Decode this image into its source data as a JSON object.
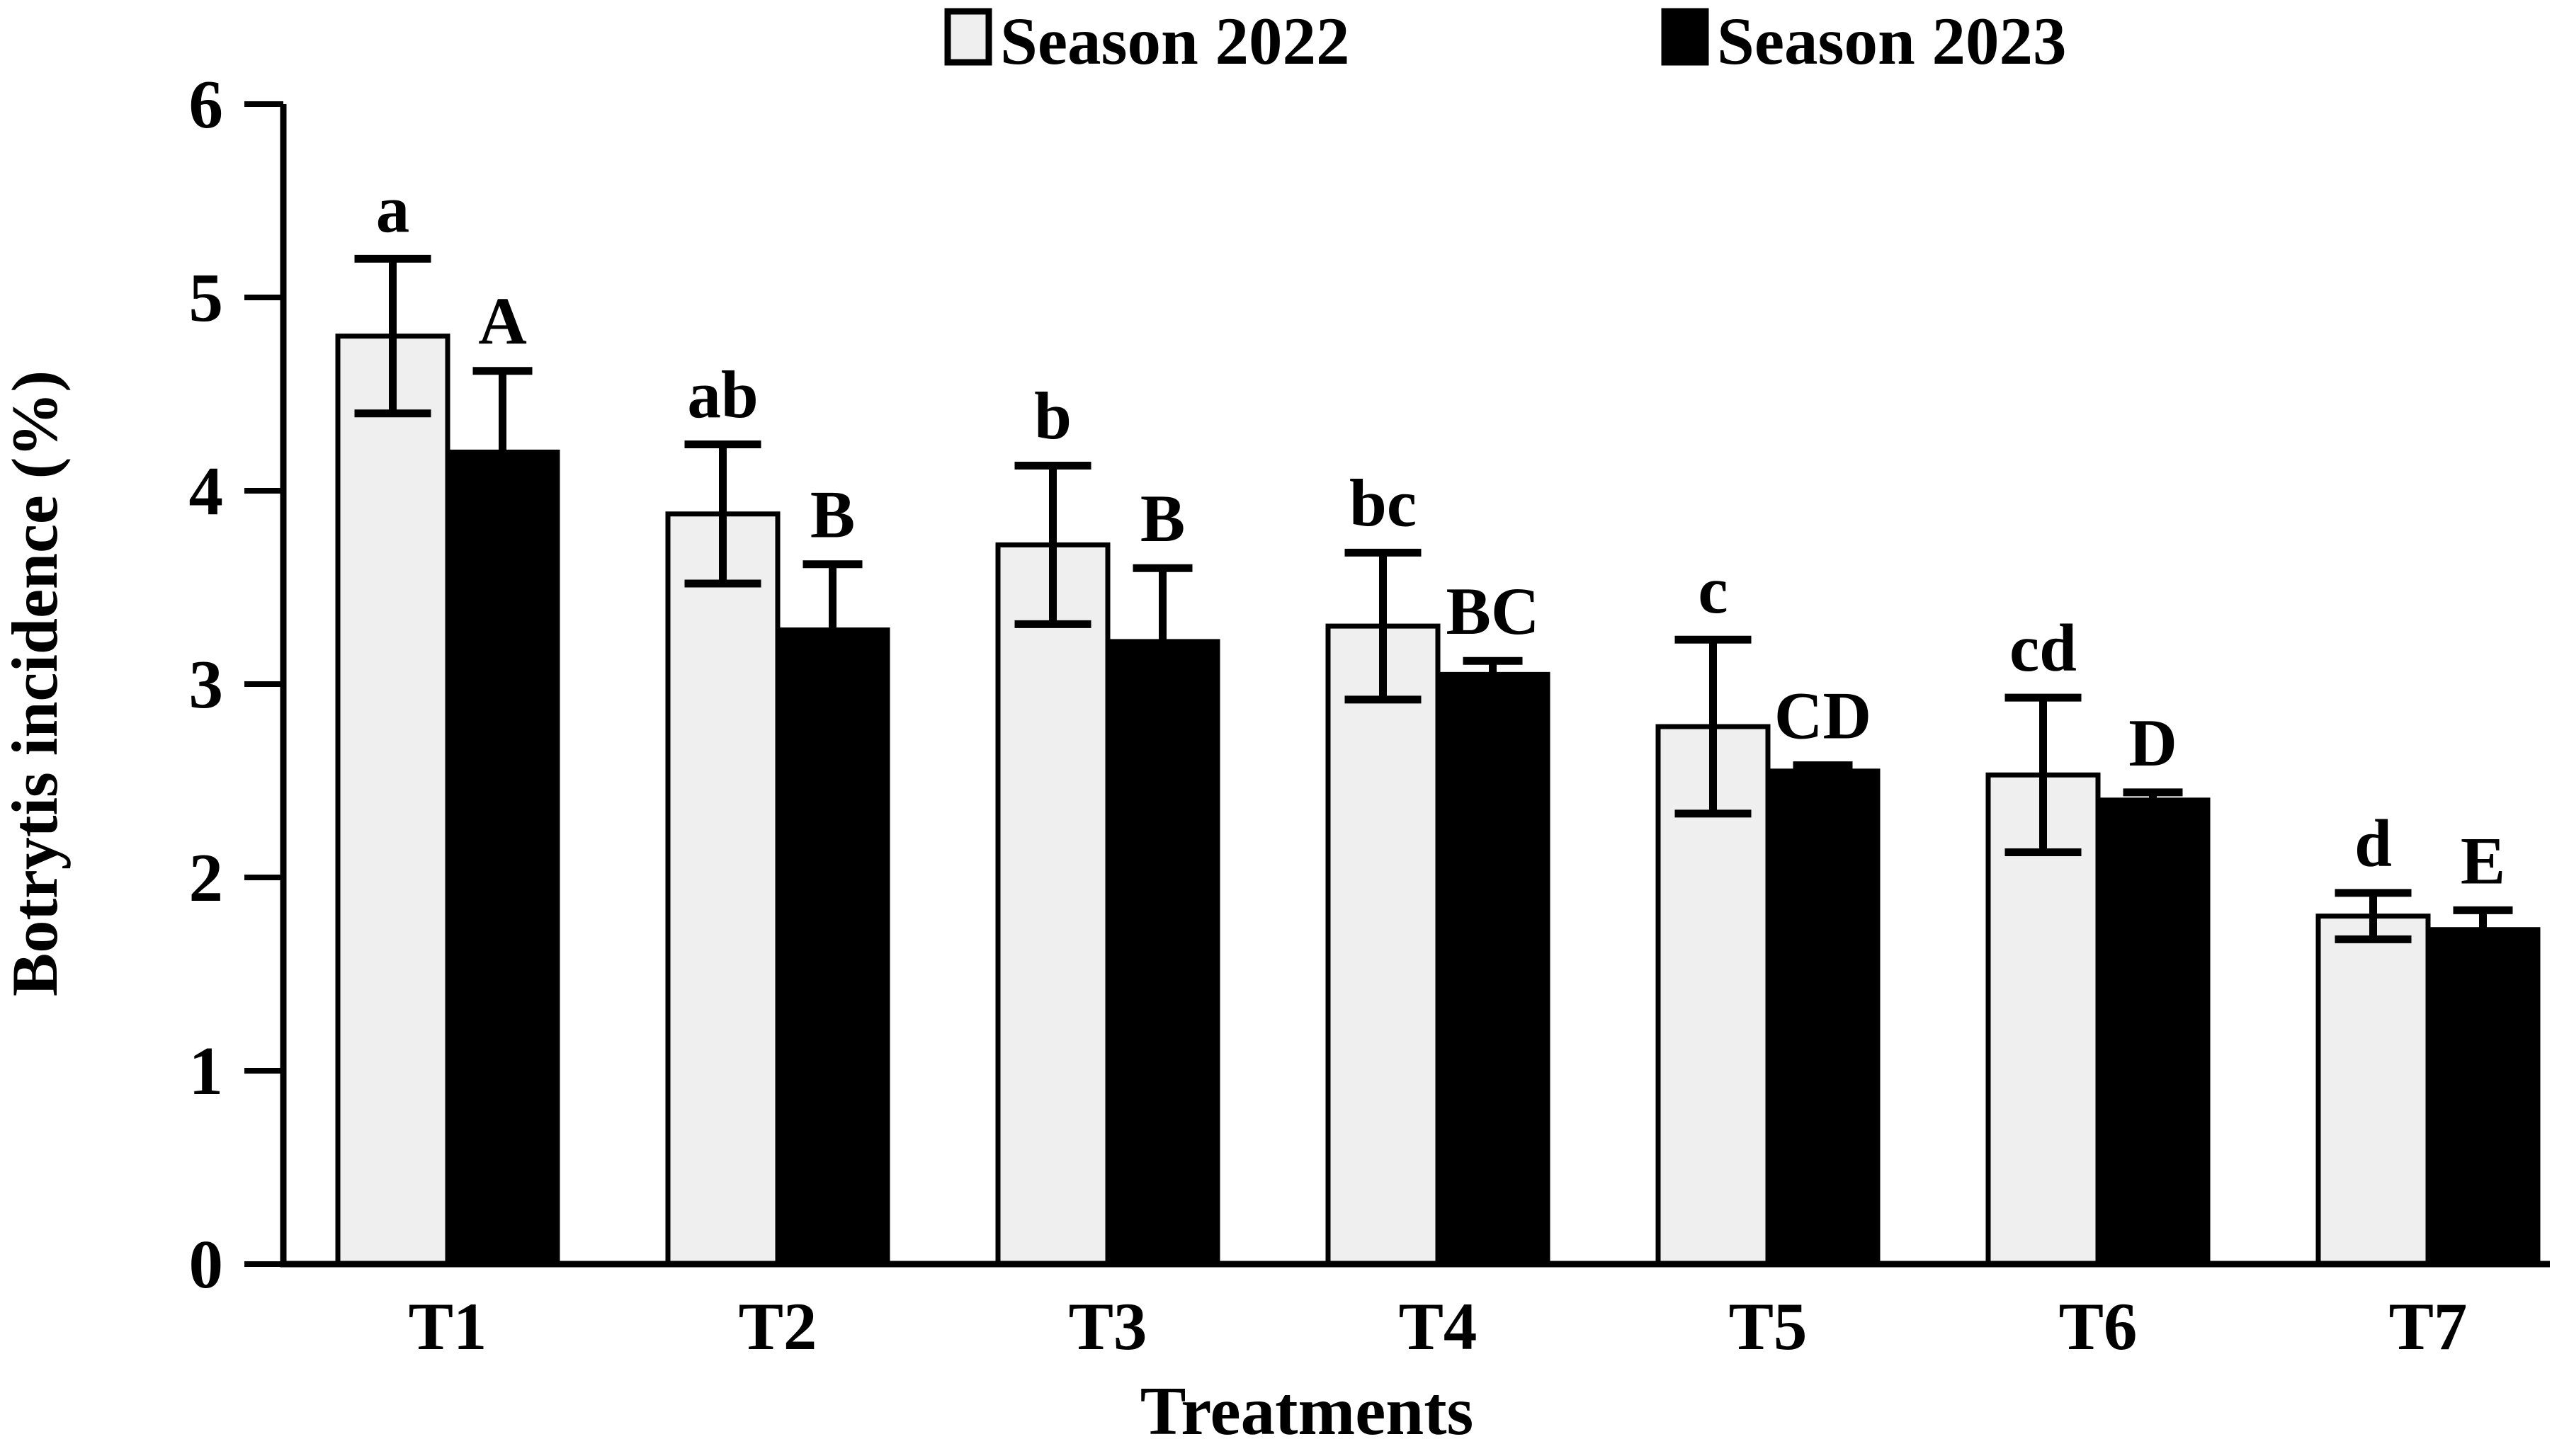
{
  "legend": {
    "items": [
      {
        "label": "Season 2022",
        "swatch_color": "#efefef",
        "swatch_border": "#000000"
      },
      {
        "label": "Season 2023",
        "swatch_color": "#000000",
        "swatch_border": "#000000"
      }
    ]
  },
  "axes": {
    "y_label": "Botrytis incidence (%)",
    "x_label": "Treatments",
    "y_ticks": [
      "0",
      "1",
      "2",
      "3",
      "4",
      "5",
      "6"
    ],
    "y_min": 0,
    "y_max": 6
  },
  "chart_data": {
    "type": "bar",
    "title": "",
    "categories": [
      "T1",
      "T2",
      "T3",
      "T4",
      "T5",
      "T6",
      "T7"
    ],
    "series": [
      {
        "name": "Season 2022",
        "color": "#efefef",
        "border": "#000000",
        "values": [
          4.8,
          3.88,
          3.72,
          3.3,
          2.78,
          2.53,
          1.8
        ],
        "errors": [
          0.4,
          0.36,
          0.41,
          0.38,
          0.45,
          0.4,
          0.12
        ],
        "sig_labels": [
          "a",
          "ab",
          "b",
          "bc",
          "c",
          "cd",
          "d"
        ]
      },
      {
        "name": "Season 2023",
        "color": "#000000",
        "border": "#000000",
        "values": [
          4.2,
          3.28,
          3.22,
          3.05,
          2.55,
          2.4,
          1.73
        ],
        "errors": [
          0.42,
          0.34,
          0.38,
          0.07,
          0.03,
          0.04,
          0.1
        ],
        "sig_labels": [
          "A",
          "B",
          "B",
          "BC",
          "CD",
          "D",
          "E"
        ]
      }
    ],
    "xlabel": "Treatments",
    "ylabel": "Botrytis incidence (%)",
    "ylim": [
      0,
      6
    ],
    "grid": false,
    "legend_position": "top-center",
    "error_bars": "symmetric, caps visible; lower halves hidden on black bars"
  }
}
